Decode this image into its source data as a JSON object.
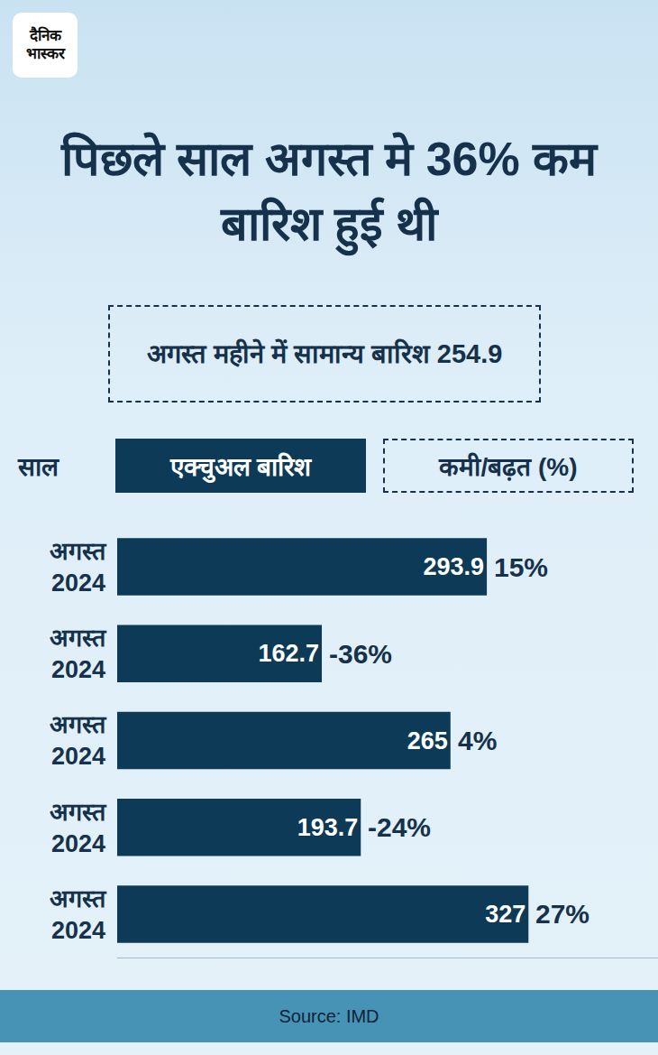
{
  "chart_data": {
    "type": "bar",
    "orientation": "horizontal",
    "logo": "दैनिक भास्कर",
    "title": "पिछले साल अगस्त मे 36% कम बारिश हुई थी",
    "subtitle": "अगस्त महीने में सामान्य बारिश 254.9",
    "column_heads": [
      "साल",
      "एक्चुअल बारिश",
      "कमी/बढ़त (%)"
    ],
    "categories": [
      "अगस्त 2024",
      "अगस्त 2024",
      "अगस्त 2024",
      "अगस्त 2024",
      "अगस्त 2024"
    ],
    "values": [
      293.9,
      162.7,
      265,
      193.7,
      327
    ],
    "changes": [
      15,
      -36,
      4,
      -24,
      27
    ],
    "change_labels": [
      "15%",
      "-36%",
      "4%",
      "-24%",
      "27%"
    ],
    "color": "#0d3a56",
    "xlim": [
      0,
      430
    ],
    "tick_labels": "y",
    "data_labels": true,
    "grid": false,
    "source": "Source: IMD"
  }
}
